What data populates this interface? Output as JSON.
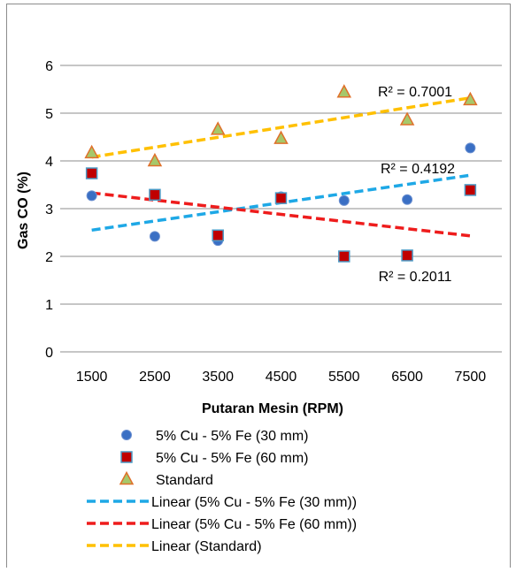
{
  "chart_data": {
    "type": "scatter",
    "xlabel": "Putaran Mesin (RPM)",
    "ylabel": "Gas CO (%)",
    "ylim": [
      0,
      6
    ],
    "y_ticks": [
      "0",
      "1",
      "2",
      "3",
      "4",
      "5",
      "6"
    ],
    "categories": [
      "1500",
      "2500",
      "3500",
      "4500",
      "5500",
      "6500",
      "7500"
    ],
    "grid": "horizontal",
    "legend_position": "bottom",
    "series": [
      {
        "name": "5% Cu  - 5% Fe  (30 mm)",
        "marker": "circle",
        "color": "#3a6fc4",
        "values": [
          3.27,
          2.42,
          2.33,
          3.25,
          3.17,
          3.19,
          4.27
        ],
        "trend": {
          "label": "Linear (5% Cu  - 5% Fe  (30 mm))",
          "color": "#1ea8e6",
          "r2_label": "R² = 0.4192",
          "start": 2.55,
          "end": 3.7
        }
      },
      {
        "name": "5% Cu  - 5% Fe  (60 mm)",
        "marker": "square",
        "color": "#c00000",
        "border": "#4d9bc6",
        "values": [
          3.74,
          3.29,
          2.44,
          3.22,
          2.0,
          2.02,
          3.39
        ],
        "trend": {
          "label": "Linear (5% Cu  - 5% Fe  (60 mm))",
          "color": "#ee1c1c",
          "r2_label": "R² = 0.2011",
          "start": 3.33,
          "end": 2.43
        }
      },
      {
        "name": "Standard",
        "marker": "triangle",
        "color": "#a6c86a",
        "border": "#e0702a",
        "values": [
          4.17,
          4.0,
          4.66,
          4.47,
          5.44,
          4.86,
          5.28
        ],
        "trend": {
          "label": "Linear (Standard)",
          "color": "#ffc000",
          "r2_label": "R² = 0.7001",
          "start": 4.08,
          "end": 5.32
        }
      }
    ]
  }
}
